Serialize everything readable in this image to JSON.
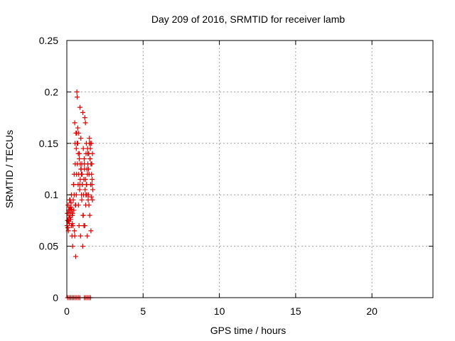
{
  "chart_data": {
    "type": "scatter",
    "title": "Day 209 of 2016, SRMTID for receiver lamb",
    "xlabel": "GPS time / hours",
    "ylabel": "SRMTID / TECUs",
    "xlim": [
      0,
      24
    ],
    "ylim": [
      0,
      0.25
    ],
    "xticks": [
      0,
      5,
      10,
      15,
      20
    ],
    "xtick_labels": [
      "0",
      "5",
      "10",
      "15",
      "20"
    ],
    "yticks": [
      0,
      0.05,
      0.1,
      0.15,
      0.2,
      0.25
    ],
    "ytick_labels": [
      "0",
      "0.05",
      "0.1",
      "0.15",
      "0.2",
      "0.25"
    ],
    "grid": true,
    "marker": "+",
    "color": "#e00000",
    "series": [
      {
        "name": "SRMTID",
        "x": [
          0.02,
          0.04,
          0.06,
          0.08,
          0.1,
          0.12,
          0.14,
          0.16,
          0.18,
          0.2,
          0.22,
          0.24,
          0.26,
          0.28,
          0.3,
          0.32,
          0.34,
          0.36,
          0.38,
          0.4,
          0.42,
          0.44,
          0.46,
          0.48,
          0.5,
          0.52,
          0.54,
          0.56,
          0.58,
          0.6,
          0.62,
          0.64,
          0.66,
          0.68,
          0.7,
          0.72,
          0.74,
          0.76,
          0.78,
          0.8,
          0.82,
          0.84,
          0.86,
          0.88,
          0.9,
          0.92,
          0.94,
          0.96,
          0.98,
          1.0,
          1.02,
          1.04,
          1.06,
          1.08,
          1.1,
          1.12,
          1.14,
          1.16,
          1.18,
          1.2,
          1.22,
          1.24,
          1.26,
          1.28,
          1.3,
          1.32,
          1.34,
          1.36,
          1.38,
          1.4,
          1.42,
          1.44,
          1.46,
          1.48,
          1.5,
          1.52,
          1.54,
          1.56,
          1.58,
          1.6,
          1.62,
          1.64,
          1.66,
          1.68,
          1.7,
          0.05,
          0.1,
          0.15,
          0.22,
          0.3,
          0.35,
          0.45,
          0.55,
          0.65,
          0.75,
          0.85,
          0.95,
          1.05,
          1.15,
          1.25,
          1.35,
          1.45,
          1.55,
          1.65,
          0.08,
          0.18,
          0.28,
          0.38,
          0.48,
          0.58,
          0.68,
          0.78,
          0.88,
          0.98,
          1.08,
          1.18,
          1.28,
          1.38,
          1.48,
          1.58,
          1.68,
          0.12,
          0.24,
          0.36,
          0.52,
          0.62,
          0.72,
          0.82,
          0.92,
          1.02,
          1.12,
          1.22,
          1.32,
          1.42,
          1.52,
          1.62,
          0.05,
          0.15,
          0.25,
          0.35,
          0.45,
          0.55,
          0.65,
          0.75,
          0.85,
          1.15,
          1.25,
          1.35,
          1.45,
          1.55
        ],
        "y": [
          0.07,
          0.082,
          0.068,
          0.09,
          0.075,
          0.085,
          0.08,
          0.072,
          0.095,
          0.088,
          0.078,
          0.083,
          0.076,
          0.092,
          0.1,
          0.086,
          0.06,
          0.08,
          0.05,
          0.07,
          0.095,
          0.11,
          0.085,
          0.12,
          0.065,
          0.17,
          0.15,
          0.09,
          0.04,
          0.16,
          0.1,
          0.12,
          0.2,
          0.195,
          0.13,
          0.15,
          0.11,
          0.09,
          0.16,
          0.07,
          0.14,
          0.105,
          0.185,
          0.115,
          0.06,
          0.155,
          0.125,
          0.1,
          0.13,
          0.12,
          0.11,
          0.05,
          0.08,
          0.145,
          0.1,
          0.115,
          0.135,
          0.125,
          0.07,
          0.105,
          0.17,
          0.09,
          0.14,
          0.15,
          0.11,
          0.125,
          0.06,
          0.145,
          0.13,
          0.095,
          0.1,
          0.14,
          0.12,
          0.155,
          0.08,
          0.135,
          0.145,
          0.11,
          0.065,
          0.098,
          0.15,
          0.13,
          0.115,
          0.14,
          0.105,
          0.075,
          0.065,
          0.085,
          0.095,
          0.07,
          0.08,
          0.11,
          0.13,
          0.16,
          0.14,
          0.11,
          0.12,
          0.18,
          0.13,
          0.1,
          0.12,
          0.09,
          0.15,
          0.11,
          0.068,
          0.078,
          0.088,
          0.082,
          0.1,
          0.09,
          0.15,
          0.12,
          0.13,
          0.095,
          0.08,
          0.175,
          0.11,
          0.14,
          0.15,
          0.13,
          0.095,
          0.074,
          0.086,
          0.072,
          0.06,
          0.145,
          0.165,
          0.135,
          0.125,
          0.11,
          0.07,
          0.115,
          0.1,
          0.125,
          0.135,
          0.12,
          0,
          0,
          0,
          0,
          0,
          0,
          0,
          0,
          0,
          0,
          0,
          0,
          0,
          0
        ]
      }
    ]
  }
}
